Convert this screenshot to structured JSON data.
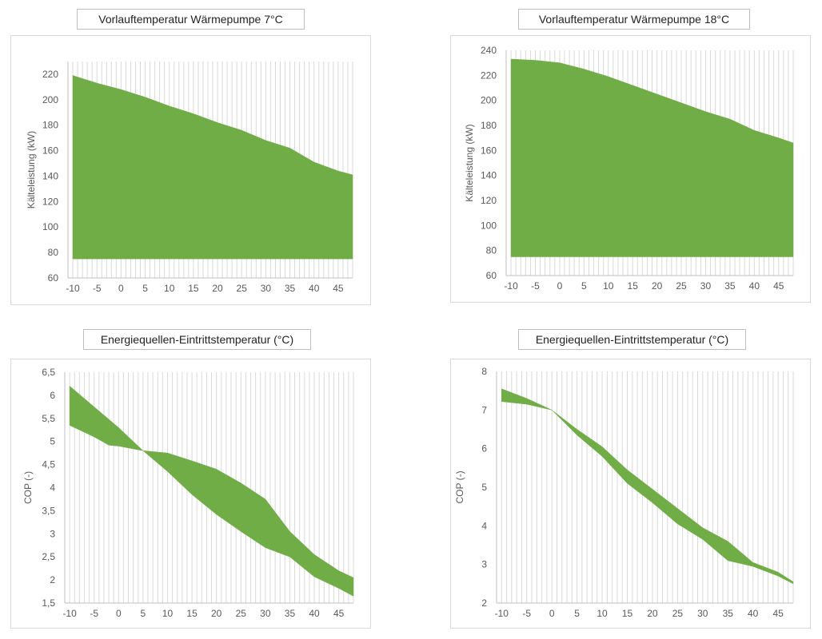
{
  "colors": {
    "fill": "#70ad47",
    "grid": "#d9d9d9",
    "axis": "#bfbfbf",
    "text": "#595959"
  },
  "chart_data": [
    {
      "type": "area",
      "title": "Vorlauftemperatur Wärmepumpe 7°C",
      "xlabel": "",
      "ylabel": "Kälteleistung (kW)",
      "xlim": [
        -11,
        48
      ],
      "ylim": [
        60,
        230
      ],
      "xticks": [
        -10,
        -5,
        0,
        5,
        10,
        15,
        20,
        25,
        30,
        35,
        40,
        45
      ],
      "yticks": [
        60,
        80,
        100,
        120,
        140,
        160,
        180,
        200,
        220
      ],
      "ytick_labels": [
        "60",
        "80",
        "100",
        "120",
        "140",
        "160",
        "180",
        "200",
        "220"
      ],
      "series": [
        {
          "name": "upper",
          "x": [
            -10,
            -5,
            0,
            5,
            10,
            15,
            20,
            25,
            30,
            35,
            40,
            45,
            48
          ],
          "values": [
            219,
            213,
            208,
            202,
            195,
            189,
            182,
            176,
            168,
            162,
            151,
            144,
            141
          ]
        },
        {
          "name": "lower",
          "x": [
            -10,
            48
          ],
          "values": [
            75,
            75
          ]
        }
      ]
    },
    {
      "type": "area",
      "title": "Vorlauftemperatur Wärmepumpe 18°C",
      "xlabel": "",
      "ylabel": "Kälteleistung (kW)",
      "xlim": [
        -11,
        48
      ],
      "ylim": [
        60,
        240
      ],
      "xticks": [
        -10,
        -5,
        0,
        5,
        10,
        15,
        20,
        25,
        30,
        35,
        40,
        45
      ],
      "yticks": [
        60,
        80,
        100,
        120,
        140,
        160,
        180,
        200,
        220,
        240
      ],
      "ytick_labels": [
        "60",
        "80",
        "100",
        "120",
        "140",
        "160",
        "180",
        "200",
        "220",
        "240"
      ],
      "series": [
        {
          "name": "upper",
          "x": [
            -10,
            -5,
            0,
            5,
            10,
            15,
            20,
            25,
            30,
            35,
            40,
            45,
            48
          ],
          "values": [
            233,
            232,
            230,
            225,
            219,
            212,
            205,
            198,
            191,
            185,
            176,
            170,
            166
          ]
        },
        {
          "name": "lower",
          "x": [
            -10,
            48
          ],
          "values": [
            75,
            75
          ]
        }
      ]
    },
    {
      "type": "area",
      "title": "Energiequellen-Eintrittstemperatur (°C)",
      "xlabel": "",
      "ylabel": "COP (-)",
      "xlim": [
        -11,
        48
      ],
      "ylim": [
        1.5,
        6.5
      ],
      "xticks": [
        -10,
        -5,
        0,
        5,
        10,
        15,
        20,
        25,
        30,
        35,
        40,
        45
      ],
      "yticks": [
        1.5,
        2,
        2.5,
        3,
        3.5,
        4,
        4.5,
        5,
        5.5,
        6,
        6.5
      ],
      "ytick_labels": [
        "1,5",
        "2",
        "2,5",
        "3",
        "3,5",
        "4",
        "4,5",
        "5",
        "5,5",
        "6",
        "6,5"
      ],
      "series": [
        {
          "name": "upper",
          "x": [
            -10,
            -5,
            0,
            5,
            8,
            10,
            15,
            20,
            25,
            30,
            35,
            40,
            45,
            48
          ],
          "values": [
            6.2,
            5.75,
            5.3,
            4.8,
            4.77,
            4.75,
            4.58,
            4.4,
            4.1,
            3.75,
            3.05,
            2.55,
            2.2,
            2.05
          ]
        },
        {
          "name": "lower",
          "x": [
            -10,
            -5,
            -2,
            0,
            5,
            10,
            15,
            20,
            25,
            30,
            35,
            40,
            45,
            48
          ],
          "values": [
            5.35,
            5.1,
            4.92,
            4.9,
            4.8,
            4.35,
            3.85,
            3.42,
            3.05,
            2.7,
            2.5,
            2.07,
            1.82,
            1.65
          ]
        }
      ]
    },
    {
      "type": "area",
      "title": "Energiequellen-Eintrittstemperatur (°C)",
      "xlabel": "",
      "ylabel": "COP (-)",
      "xlim": [
        -11,
        48
      ],
      "ylim": [
        2,
        8
      ],
      "xticks": [
        -10,
        -5,
        0,
        5,
        10,
        15,
        20,
        25,
        30,
        35,
        40,
        45
      ],
      "yticks": [
        2,
        3,
        4,
        5,
        6,
        7,
        8
      ],
      "ytick_labels": [
        "2",
        "3",
        "4",
        "5",
        "6",
        "7",
        "8"
      ],
      "series": [
        {
          "name": "upper",
          "x": [
            -10,
            -5,
            0,
            5,
            10,
            15,
            20,
            25,
            30,
            35,
            40,
            45,
            48
          ],
          "values": [
            7.55,
            7.3,
            7.0,
            6.5,
            6.05,
            5.45,
            4.95,
            4.45,
            3.95,
            3.6,
            3.05,
            2.8,
            2.55
          ]
        },
        {
          "name": "lower",
          "x": [
            -10,
            -5,
            0,
            5,
            10,
            15,
            20,
            25,
            30,
            35,
            40,
            45,
            48
          ],
          "values": [
            7.22,
            7.15,
            7.0,
            6.35,
            5.8,
            5.1,
            4.6,
            4.05,
            3.65,
            3.1,
            2.95,
            2.7,
            2.5
          ]
        }
      ]
    }
  ]
}
